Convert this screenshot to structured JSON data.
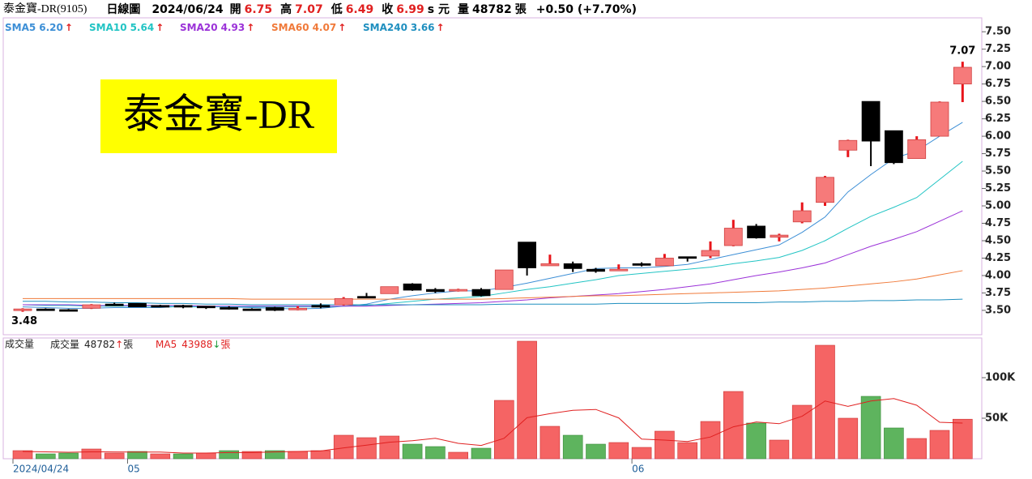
{
  "chart_data": {
    "type": "candlestick",
    "title": "泰金寶-DR(9105)",
    "period": "日線圖",
    "date": "2024/06/24",
    "field_labels": {
      "open": "開",
      "high": "高",
      "low": "低",
      "close": "收",
      "unit": "s 元",
      "volume": "量",
      "lot": "張"
    },
    "change": "+0.50 (+7.70%)",
    "banner": "泰金寶-DR",
    "categories": [
      "2024/04/24",
      null,
      null,
      null,
      null,
      "05",
      null,
      null,
      null,
      null,
      null,
      null,
      null,
      null,
      null,
      null,
      null,
      null,
      null,
      null,
      null,
      null,
      null,
      null,
      null,
      null,
      null,
      "06",
      null,
      null,
      null,
      null,
      null,
      null,
      null,
      null,
      null,
      null,
      null,
      null,
      null,
      null
    ],
    "open": [
      3.5,
      3.52,
      3.51,
      3.53,
      3.59,
      3.6,
      3.57,
      3.57,
      3.56,
      3.54,
      3.52,
      3.54,
      3.51,
      3.57,
      3.58,
      3.7,
      3.74,
      3.88,
      3.8,
      3.78,
      3.8,
      3.8,
      4.48,
      4.14,
      4.17,
      4.09,
      4.08,
      4.17,
      4.14,
      4.27,
      4.28,
      4.43,
      4.71,
      4.55,
      4.77,
      5.05,
      5.8,
      6.5,
      6.08,
      5.68,
      6.0,
      6.75
    ],
    "high": [
      3.53,
      3.53,
      3.52,
      3.59,
      3.61,
      3.6,
      3.58,
      3.58,
      3.56,
      3.56,
      3.53,
      3.55,
      3.56,
      3.6,
      3.69,
      3.75,
      3.84,
      3.89,
      3.82,
      3.81,
      3.82,
      4.08,
      4.48,
      4.3,
      4.2,
      4.11,
      4.16,
      4.19,
      4.31,
      4.27,
      4.49,
      4.8,
      4.74,
      4.6,
      5.05,
      5.43,
      5.95,
      6.5,
      6.08,
      6.0,
      6.5,
      7.07
    ],
    "low": [
      3.48,
      3.5,
      3.5,
      3.52,
      3.57,
      3.55,
      3.55,
      3.53,
      3.52,
      3.51,
      3.5,
      3.49,
      3.5,
      3.53,
      3.57,
      3.68,
      3.74,
      3.78,
      3.75,
      3.77,
      3.7,
      3.8,
      4.0,
      4.14,
      4.05,
      4.04,
      4.07,
      4.13,
      4.14,
      4.2,
      4.25,
      4.42,
      4.53,
      4.49,
      4.75,
      5.0,
      5.7,
      5.57,
      5.6,
      5.68,
      6.0,
      6.49
    ],
    "close": [
      3.52,
      3.51,
      3.5,
      3.58,
      3.58,
      3.55,
      3.56,
      3.55,
      3.55,
      3.52,
      3.52,
      3.5,
      3.53,
      3.56,
      3.67,
      3.69,
      3.84,
      3.79,
      3.77,
      3.8,
      3.71,
      4.08,
      4.11,
      4.17,
      4.1,
      4.06,
      4.09,
      4.15,
      4.25,
      4.25,
      4.36,
      4.68,
      4.54,
      4.58,
      4.93,
      5.41,
      5.94,
      5.93,
      5.62,
      5.95,
      6.49,
      6.99
    ],
    "up_color": "#f67a7a",
    "down_color": "#000000",
    "ylim": [
      3.15,
      7.7
    ],
    "yticks": [
      {
        "value": 3.5,
        "label": "3.50"
      },
      {
        "value": 3.75,
        "label": "3.75"
      },
      {
        "value": 4,
        "label": "4.00"
      },
      {
        "value": 4.25,
        "label": "4.25"
      },
      {
        "value": 4.5,
        "label": "4.50"
      },
      {
        "value": 4.75,
        "label": "4.75"
      },
      {
        "value": 5,
        "label": "5.00"
      },
      {
        "value": 5.25,
        "label": "5.25"
      },
      {
        "value": 5.5,
        "label": "5.50"
      },
      {
        "value": 5.75,
        "label": "5.75"
      },
      {
        "value": 6,
        "label": "6.00"
      },
      {
        "value": 6.25,
        "label": "6.25"
      },
      {
        "value": 6.5,
        "label": "6.50"
      },
      {
        "value": 6.75,
        "label": "6.75"
      },
      {
        "value": 7,
        "label": "7.00"
      },
      {
        "value": 7.25,
        "label": "7.25"
      },
      {
        "value": 7.5,
        "label": "7.50"
      }
    ],
    "grid": false,
    "trend_up": "↑",
    "trend_down": "↓",
    "series": [
      {
        "name": "SMA5",
        "color": "#3d8fd6",
        "legend_label": "6.20",
        "values": [
          3.55,
          3.54,
          3.53,
          3.53,
          3.54,
          3.54,
          3.54,
          3.56,
          3.56,
          3.55,
          3.54,
          3.53,
          3.52,
          3.53,
          3.56,
          3.59,
          3.66,
          3.71,
          3.75,
          3.78,
          3.78,
          3.83,
          3.89,
          3.96,
          4.03,
          4.1,
          4.11,
          4.11,
          4.13,
          4.16,
          4.23,
          4.3,
          4.37,
          4.44,
          4.62,
          4.84,
          5.2,
          5.45,
          5.68,
          5.79,
          6.0,
          6.2
        ]
      },
      {
        "name": "SMA10",
        "color": "#22c4c4",
        "legend_label": "5.64",
        "values": [
          3.58,
          3.57,
          3.57,
          3.56,
          3.56,
          3.56,
          3.56,
          3.55,
          3.55,
          3.55,
          3.55,
          3.55,
          3.55,
          3.55,
          3.56,
          3.57,
          3.6,
          3.63,
          3.66,
          3.68,
          3.7,
          3.75,
          3.8,
          3.84,
          3.89,
          3.94,
          4.0,
          4.03,
          4.06,
          4.09,
          4.12,
          4.17,
          4.21,
          4.26,
          4.36,
          4.5,
          4.68,
          4.85,
          4.98,
          5.12,
          5.38,
          5.64
        ]
      },
      {
        "name": "SMA20",
        "color": "#9b32d8",
        "legend_label": "4.93",
        "values": [
          3.58,
          3.58,
          3.58,
          3.57,
          3.57,
          3.57,
          3.57,
          3.57,
          3.56,
          3.56,
          3.56,
          3.56,
          3.56,
          3.56,
          3.56,
          3.56,
          3.57,
          3.58,
          3.59,
          3.6,
          3.61,
          3.63,
          3.65,
          3.68,
          3.7,
          3.72,
          3.74,
          3.77,
          3.8,
          3.84,
          3.88,
          3.94,
          4.0,
          4.05,
          4.11,
          4.18,
          4.3,
          4.42,
          4.52,
          4.63,
          4.78,
          4.93
        ]
      },
      {
        "name": "SMA60",
        "color": "#f07a3a",
        "legend_label": "4.07",
        "values": [
          3.67,
          3.67,
          3.67,
          3.67,
          3.67,
          3.67,
          3.67,
          3.67,
          3.67,
          3.67,
          3.66,
          3.66,
          3.66,
          3.66,
          3.66,
          3.66,
          3.66,
          3.66,
          3.66,
          3.66,
          3.66,
          3.67,
          3.68,
          3.69,
          3.7,
          3.71,
          3.71,
          3.72,
          3.73,
          3.74,
          3.75,
          3.76,
          3.77,
          3.78,
          3.8,
          3.82,
          3.85,
          3.88,
          3.91,
          3.95,
          4.01,
          4.07
        ]
      },
      {
        "name": "SMA240",
        "color": "#1f8fbf",
        "legend_label": "3.66",
        "values": [
          3.63,
          3.63,
          3.62,
          3.62,
          3.61,
          3.61,
          3.6,
          3.6,
          3.59,
          3.59,
          3.58,
          3.58,
          3.58,
          3.58,
          3.58,
          3.58,
          3.58,
          3.58,
          3.58,
          3.58,
          3.58,
          3.59,
          3.59,
          3.59,
          3.59,
          3.59,
          3.6,
          3.6,
          3.6,
          3.6,
          3.61,
          3.61,
          3.61,
          3.62,
          3.62,
          3.63,
          3.63,
          3.64,
          3.64,
          3.65,
          3.65,
          3.66
        ]
      }
    ],
    "volume": {
      "title": "成交量",
      "label": "成交量",
      "unit": "張",
      "up_color": "#f56464",
      "down_color": "#5eb45e",
      "values": [
        10000,
        6000,
        7000,
        12000,
        7000,
        9000,
        6000,
        6000,
        7000,
        10000,
        9000,
        10000,
        9000,
        10000,
        29000,
        26000,
        28000,
        18000,
        15000,
        8000,
        13000,
        72000,
        145000,
        40000,
        29000,
        18000,
        20000,
        14000,
        34000,
        20000,
        46000,
        83000,
        44000,
        23000,
        66000,
        140000,
        50000,
        77000,
        38000,
        25000,
        35000,
        48782
      ],
      "ma": {
        "name": "MA5",
        "color": "#e02020",
        "values": [
          9000,
          8500,
          8000,
          8500,
          8400,
          8200,
          8200,
          7000,
          7000,
          7600,
          7600,
          8400,
          9000,
          9600,
          13400,
          16800,
          20400,
          22200,
          25200,
          19000,
          16400,
          25200,
          50600,
          55600,
          59800,
          60800,
          50400,
          24200,
          23000,
          21200,
          26800,
          39400,
          45400,
          43200,
          52400,
          71200,
          64600,
          71200,
          74200,
          66000,
          45000,
          43988
        ]
      },
      "ylim": [
        0,
        149000
      ],
      "yticks": [
        {
          "value": 50000,
          "label": "50K"
        },
        {
          "value": 100000,
          "label": "100K"
        }
      ]
    }
  }
}
